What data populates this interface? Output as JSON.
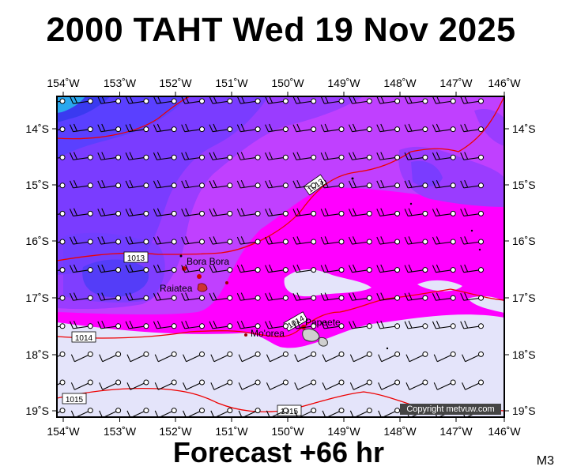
{
  "title": "2000 TAHT Wed 19 Nov 2025",
  "subtitle": "Forecast +66 hr",
  "map_code": "M3",
  "copyright": "Copyright metvuw.com",
  "x_ticks": [
    "154˚W",
    "153˚W",
    "152˚W",
    "151˚W",
    "150˚W",
    "149˚W",
    "148˚W",
    "147˚W",
    "146˚W"
  ],
  "y_ticks": [
    "14˚S",
    "15˚S",
    "16˚S",
    "17˚S",
    "18˚S",
    "19˚S"
  ],
  "places": [
    "Bora Bora",
    "Raiatea",
    "Mo'orea",
    "Papeete"
  ],
  "isobar_labels": [
    "1013",
    "1013",
    "1014",
    "1015",
    "1015",
    "1014"
  ],
  "colors": {
    "frame": "#000000",
    "lavender": "#e4e4fa",
    "magenta": "#ff00ff",
    "violet": "#b23cff",
    "purple": "#8a3cff",
    "blue": "#5555ff",
    "deep_blue": "#2a2aee",
    "cyan": "#2aa8ee",
    "isobar": "#ee0000"
  }
}
